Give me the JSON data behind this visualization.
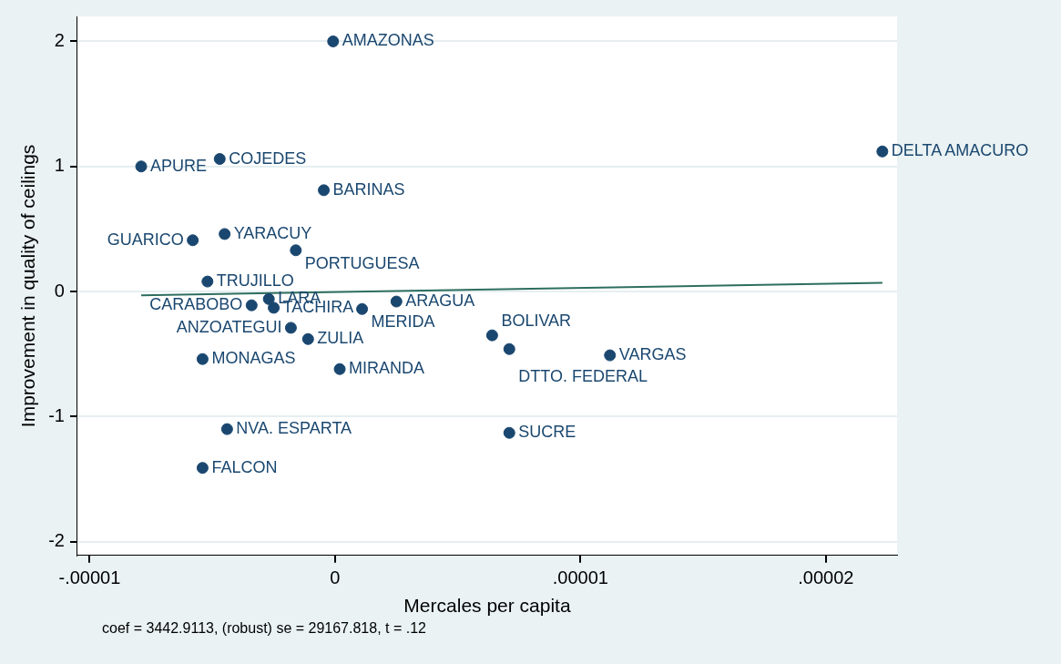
{
  "chart_data": {
    "type": "scatter",
    "xlabel": "Mercales per capita",
    "ylabel": "Improvement in quality of ceilings",
    "xlim": [
      -1.05e-05,
      2.29e-05
    ],
    "ylim": [
      -2.11,
      2.2
    ],
    "xticks": [
      {
        "value": -1e-05,
        "label": "-.00001"
      },
      0,
      {
        "value": 1e-05,
        "label": ".00001"
      },
      {
        "value": 2e-05,
        "label": ".00002"
      }
    ],
    "yticks": [
      -2,
      -1,
      0,
      1,
      2
    ],
    "grid": "y",
    "legend": false,
    "series": [
      {
        "color": "#1a476f",
        "marker": "circle",
        "x": [
          -8e-08,
          2.23e-05,
          -7.9e-06,
          -4.7e-06,
          -4.6e-07,
          -4.5e-06,
          -5.8e-06,
          -1.6e-06,
          -5.2e-06,
          -2.7e-06,
          -3.4e-06,
          -2.5e-06,
          1.1e-06,
          2.5e-06,
          -1.8e-06,
          -1.1e-06,
          -5.4e-06,
          1.9e-07,
          6.4e-06,
          7.1e-06,
          1.12e-05,
          -4.4e-06,
          7.1e-06,
          -5.4e-06
        ],
        "values": [
          2.0,
          1.12,
          1.0,
          1.06,
          0.81,
          0.46,
          0.41,
          0.33,
          0.08,
          -0.06,
          -0.11,
          -0.13,
          -0.14,
          -0.08,
          -0.29,
          -0.38,
          -0.54,
          -0.62,
          -0.35,
          -0.46,
          -0.51,
          -1.1,
          -1.13,
          -1.41
        ]
      },
      {
        "type": "line",
        "color": "#2d6e5e",
        "x": [
          -7.9e-06,
          2.23e-05
        ],
        "values": [
          -0.03,
          0.07
        ]
      }
    ],
    "annotations": [
      {
        "text": "AMAZONAS",
        "x": -8e-08,
        "y": 2.0
      },
      {
        "text": "DELTA AMACURO",
        "x": 2.23e-05,
        "y": 1.12
      },
      {
        "text": "APURE",
        "x": -7.9e-06,
        "y": 1.0
      },
      {
        "text": "COJEDES",
        "x": -4.7e-06,
        "y": 1.06
      },
      {
        "text": "BARINAS",
        "x": -4.6e-07,
        "y": 0.81
      },
      {
        "text": "YARACUY",
        "x": -4.5e-06,
        "y": 0.46
      },
      {
        "text": "GUARICO",
        "x": -5.8e-06,
        "y": 0.41
      },
      {
        "text": "PORTUGUESA",
        "x": -1.6e-06,
        "y": 0.33
      },
      {
        "text": "TRUJILLO",
        "x": -5.2e-06,
        "y": 0.08
      },
      {
        "text": "LARA",
        "x": -2.7e-06,
        "y": -0.06
      },
      {
        "text": "CARABOBO",
        "x": -3.4e-06,
        "y": -0.11
      },
      {
        "text": "TACHIRA",
        "x": -2.5e-06,
        "y": -0.13
      },
      {
        "text": "MERIDA",
        "x": 1.1e-06,
        "y": -0.14
      },
      {
        "text": "ARAGUA",
        "x": 2.5e-06,
        "y": -0.08
      },
      {
        "text": "ANZOATEGUI",
        "x": -1.8e-06,
        "y": -0.29
      },
      {
        "text": "ZULIA",
        "x": -1.1e-06,
        "y": -0.38
      },
      {
        "text": "MONAGAS",
        "x": -5.4e-06,
        "y": -0.54
      },
      {
        "text": "MIRANDA",
        "x": 1.9e-07,
        "y": -0.62
      },
      {
        "text": "BOLIVAR",
        "x": 6.4e-06,
        "y": -0.35
      },
      {
        "text": "DTTO. FEDERAL",
        "x": 7.1e-06,
        "y": -0.46
      },
      {
        "text": "VARGAS",
        "x": 1.12e-05,
        "y": -0.51
      },
      {
        "text": "NVA. ESPARTA",
        "x": -4.4e-06,
        "y": -1.1
      },
      {
        "text": "SUCRE",
        "x": 7.1e-06,
        "y": -1.13
      },
      {
        "text": "FALCON",
        "x": -5.4e-06,
        "y": -1.41
      },
      "coef = 3442.9113, (robust) se = 29167.818, t = .12"
    ]
  }
}
